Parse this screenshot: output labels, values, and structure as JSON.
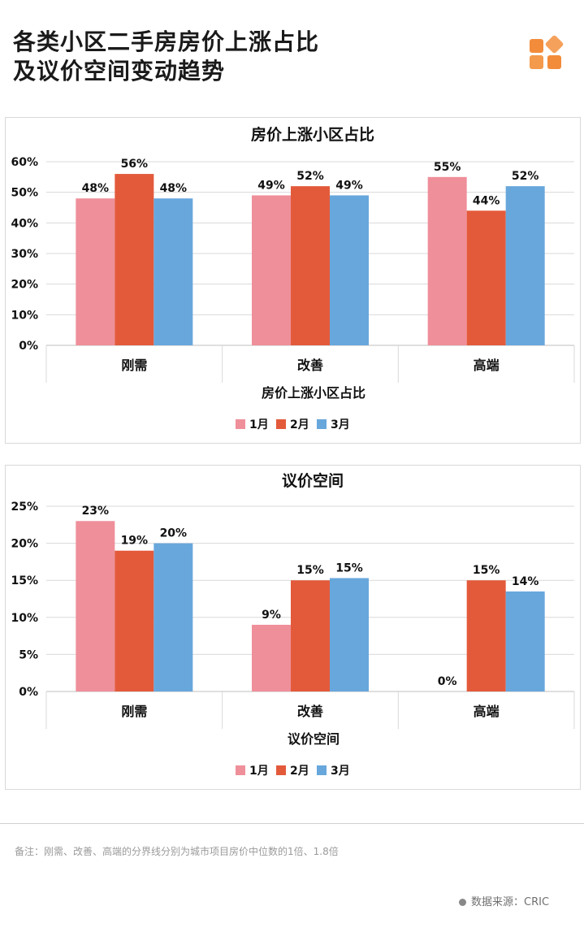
{
  "header": {
    "title_line1": "各类小区二手房房价上涨占比",
    "title_line2": "及议价空间变动趋势"
  },
  "logo": {
    "icon": "four-squares-logo-icon",
    "colors": [
      "#f28c3b",
      "#f5a15b",
      "#f39a4c",
      "#f28c3b"
    ]
  },
  "colors": {
    "jan": "#ef8f9a",
    "feb": "#e35a3b",
    "mar": "#68a7dc",
    "grid": "#d9d9d9",
    "axis": "#bfbfbf"
  },
  "chart_data": [
    {
      "type": "bar",
      "title": "房价上涨小区占比",
      "xlabel": "房价上涨小区占比",
      "ylabel": "",
      "categories": [
        "刚需",
        "改善",
        "高端"
      ],
      "ylim": [
        0,
        60
      ],
      "yticks": [
        0,
        10,
        20,
        30,
        40,
        50,
        60
      ],
      "ytick_labels": [
        "0%",
        "10%",
        "20%",
        "30%",
        "40%",
        "50%",
        "60%"
      ],
      "grid": true,
      "legend_position": "bottom",
      "series": [
        {
          "name": "1月",
          "values": [
            48,
            49,
            55
          ],
          "labels": [
            "48%",
            "49%",
            "55%"
          ]
        },
        {
          "name": "2月",
          "values": [
            56,
            52,
            44
          ],
          "labels": [
            "56%",
            "52%",
            "44%"
          ]
        },
        {
          "name": "3月",
          "values": [
            48,
            49,
            52
          ],
          "labels": [
            "48%",
            "49%",
            "52%"
          ]
        }
      ]
    },
    {
      "type": "bar",
      "title": "议价空间",
      "xlabel": "议价空间",
      "ylabel": "",
      "categories": [
        "刚需",
        "改善",
        "高端"
      ],
      "ylim": [
        0,
        25
      ],
      "yticks": [
        0,
        5,
        10,
        15,
        20,
        25
      ],
      "ytick_labels": [
        "0%",
        "5%",
        "10%",
        "15%",
        "20%",
        "25%"
      ],
      "grid": true,
      "legend_position": "bottom",
      "series": [
        {
          "name": "1月",
          "values": [
            23,
            9,
            0
          ],
          "labels": [
            "23%",
            "9%",
            "0%"
          ]
        },
        {
          "name": "2月",
          "values": [
            19,
            15,
            15
          ],
          "labels": [
            "19%",
            "15%",
            "15%"
          ]
        },
        {
          "name": "3月",
          "values": [
            20,
            15.3,
            13.5
          ],
          "labels": [
            "20%",
            "15%",
            "14%"
          ]
        }
      ]
    }
  ],
  "footer": {
    "note": "备注：刚需、改善、高端的分界线分别为城市项目房价中位数的1倍、1.8倍",
    "source": "数据来源：CRIC"
  }
}
